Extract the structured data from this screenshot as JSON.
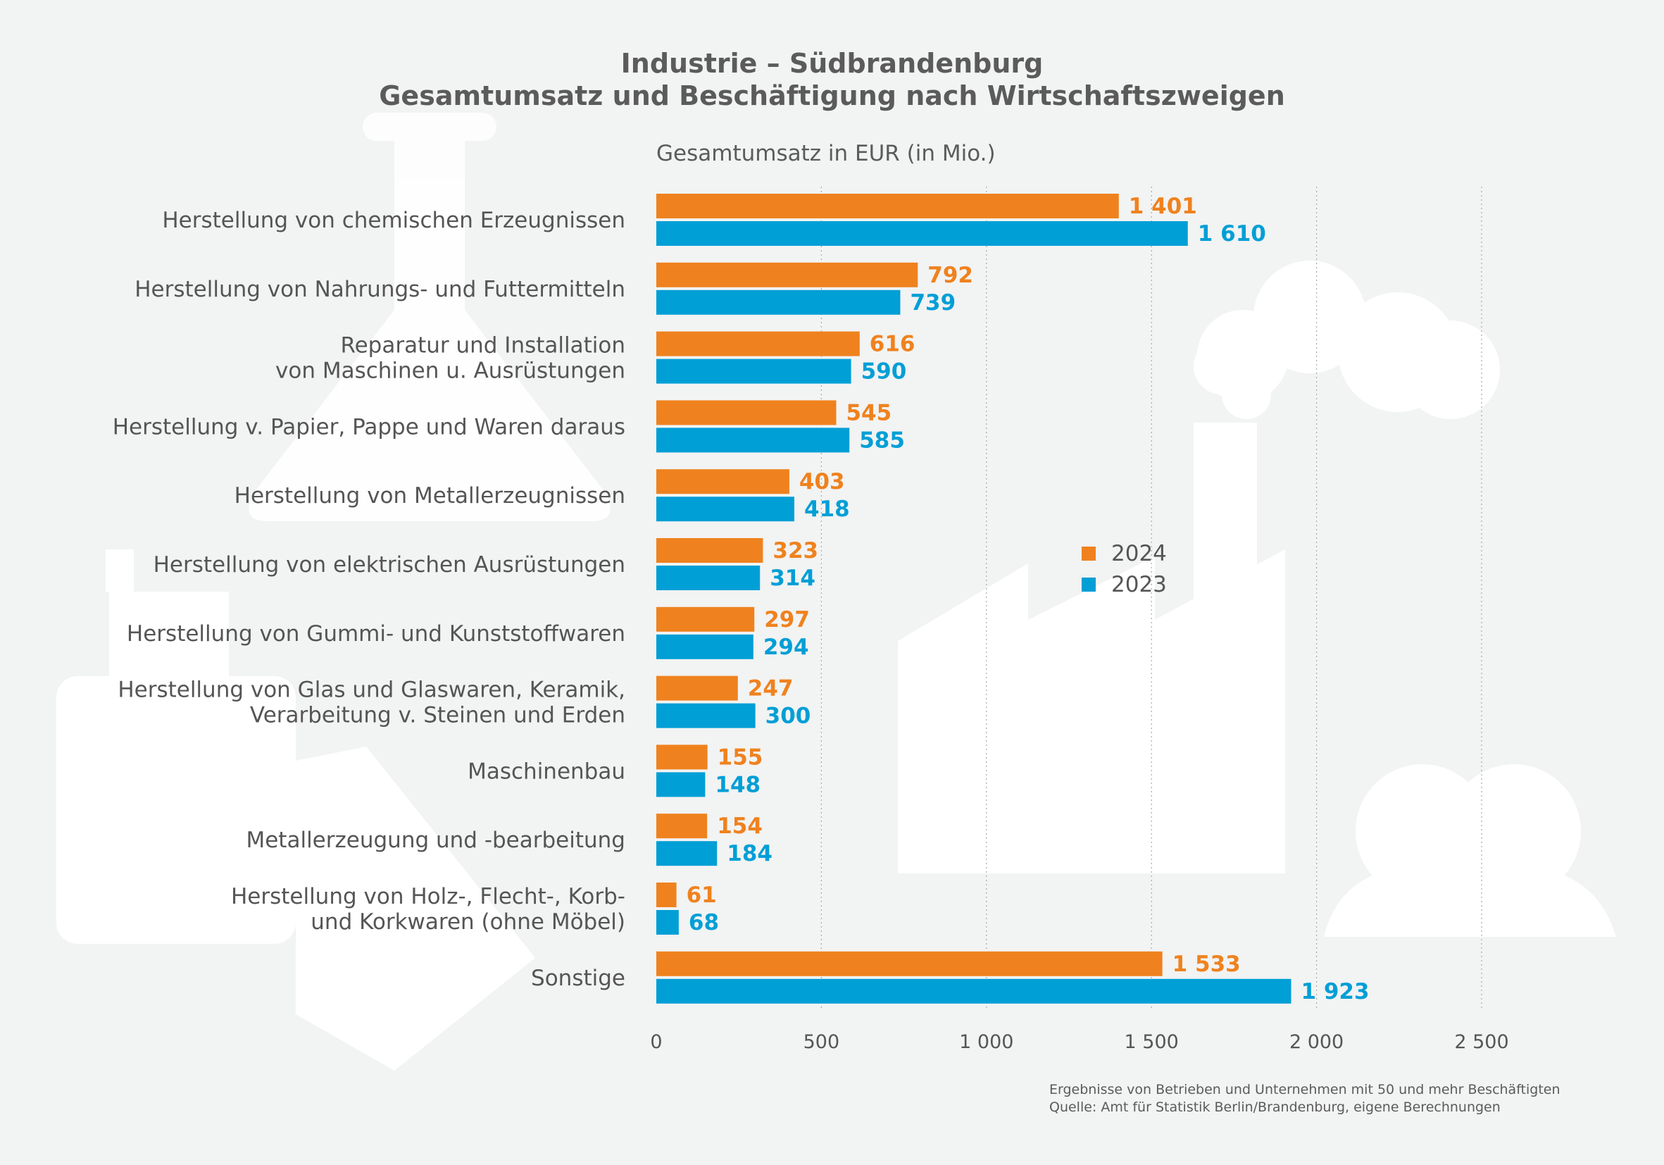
{
  "title": {
    "line1": "Industrie – Südbrandenburg",
    "line2": "Gesamtumsatz und Beschäftigung nach Wirtschaftszweigen"
  },
  "subtitle": "Gesamtumsatz in EUR (in Mio.)",
  "footnote": {
    "line1": "Ergebnisse von Betrieben und Unternehmen mit 50 und mehr Beschäftigten",
    "line2": "Quelle: Amt für Statistik Berlin/Brandenburg, eigene Berechnungen"
  },
  "colors": {
    "series_2024": "#ef821e",
    "series_2023": "#009fd6",
    "background": "#f2f3f3",
    "text": "#555555"
  },
  "chart_data": {
    "type": "bar",
    "orientation": "horizontal",
    "title": "Gesamtumsatz in EUR (in Mio.)",
    "xlabel": "",
    "ylabel": "",
    "xlim": [
      0,
      2500
    ],
    "ticks": [
      {
        "value": 0,
        "label": "0"
      },
      {
        "value": 500,
        "label": "500"
      },
      {
        "value": 1000,
        "label": "1 000"
      },
      {
        "value": 1500,
        "label": "1 500"
      },
      {
        "value": 2000,
        "label": "2 000"
      },
      {
        "value": 2500,
        "label": "2 500"
      }
    ],
    "grid": true,
    "legend_position": "center-right",
    "categories": [
      [
        "Herstellung von chemischen Erzeugnissen"
      ],
      [
        "Herstellung von Nahrungs- und Futtermitteln"
      ],
      [
        "Reparatur und Installation",
        "von Maschinen u. Ausrüstungen"
      ],
      [
        "Herstellung v. Papier, Pappe und Waren daraus"
      ],
      [
        "Herstellung von Metallerzeugnissen"
      ],
      [
        "Herstellung von elektrischen Ausrüstungen"
      ],
      [
        "Herstellung von Gummi- und Kunststoffwaren"
      ],
      [
        "Herstellung von Glas und Glaswaren, Keramik,",
        "Verarbeitung v. Steinen und Erden"
      ],
      [
        "Maschinenbau"
      ],
      [
        "Metallerzeugung und -bearbeitung"
      ],
      [
        "Herstellung von Holz-, Flecht-, Korb-",
        "und Korkwaren (ohne Möbel)"
      ],
      [
        "Sonstige"
      ]
    ],
    "series": [
      {
        "name": "2024",
        "values": [
          1401,
          792,
          616,
          545,
          403,
          323,
          297,
          247,
          155,
          154,
          61,
          1533
        ],
        "labels": [
          "1 401",
          "792",
          "616",
          "545",
          "403",
          "323",
          "297",
          "247",
          "155",
          "154",
          "61",
          "1 533"
        ]
      },
      {
        "name": "2023",
        "values": [
          1610,
          739,
          590,
          585,
          418,
          314,
          294,
          300,
          148,
          184,
          68,
          1923
        ],
        "labels": [
          "1 610",
          "739",
          "590",
          "585",
          "418",
          "314",
          "294",
          "300",
          "148",
          "184",
          "68",
          "1 923"
        ]
      }
    ]
  }
}
